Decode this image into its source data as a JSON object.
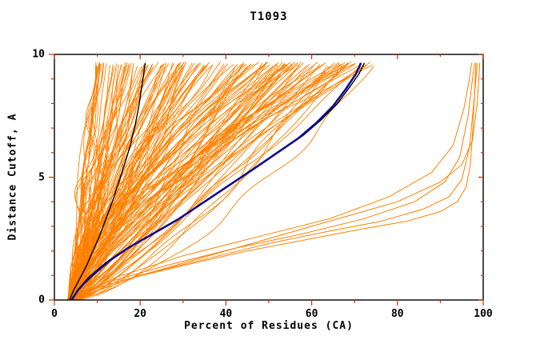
{
  "chart_data": {
    "type": "line",
    "title": "T1093",
    "xlabel": "Percent of Residues (CA)",
    "ylabel": "Distance Cutoff, A",
    "xlim": [
      0,
      100
    ],
    "ylim": [
      0,
      10
    ],
    "xticks": [
      0,
      20,
      40,
      60,
      80,
      100
    ],
    "yticks": [
      0,
      5,
      10
    ],
    "x_minor_step": 10,
    "y_minor_step": 1,
    "grid": false,
    "legend": "none",
    "colors": {
      "models": "#ff8000",
      "reference": "#000000",
      "highlight": "#140a8c",
      "frame": "#000000",
      "ticks": "#cc3300",
      "background": "#ffffff"
    },
    "model_bundle": {
      "description": "bundle of server model GDT-style curves",
      "count": 150,
      "seed": 42,
      "x_start_range": [
        3,
        6
      ],
      "x_top_range": [
        8,
        75
      ],
      "shape_exp_range": [
        0.65,
        1.75
      ],
      "y_top": 9.65,
      "line_width": 0.9
    },
    "outlier_curves": [
      {
        "name": "outlier-model-1",
        "points": [
          [
            3.5,
            0
          ],
          [
            8,
            0.4
          ],
          [
            18,
            0.9
          ],
          [
            30,
            1.4
          ],
          [
            45,
            2.0
          ],
          [
            60,
            2.5
          ],
          [
            72,
            2.9
          ],
          [
            82,
            3.2
          ],
          [
            90,
            3.6
          ],
          [
            94,
            4.0
          ],
          [
            96,
            4.6
          ],
          [
            97,
            5.5
          ],
          [
            97.6,
            7.0
          ],
          [
            98,
            8.5
          ],
          [
            98.3,
            9.65
          ]
        ]
      },
      {
        "name": "outlier-model-2",
        "points": [
          [
            4,
            0
          ],
          [
            10,
            0.5
          ],
          [
            22,
            1.1
          ],
          [
            36,
            1.7
          ],
          [
            50,
            2.3
          ],
          [
            64,
            2.8
          ],
          [
            76,
            3.2
          ],
          [
            86,
            3.7
          ],
          [
            92,
            4.2
          ],
          [
            95,
            4.9
          ],
          [
            96.8,
            6.2
          ],
          [
            97.8,
            8.0
          ],
          [
            98.4,
            9.2
          ],
          [
            98.6,
            9.65
          ]
        ]
      },
      {
        "name": "outlier-model-3",
        "points": [
          [
            4.5,
            0
          ],
          [
            12,
            0.7
          ],
          [
            26,
            1.4
          ],
          [
            42,
            2.1
          ],
          [
            58,
            2.7
          ],
          [
            72,
            3.3
          ],
          [
            84,
            4.0
          ],
          [
            91,
            4.8
          ],
          [
            94.5,
            5.8
          ],
          [
            96.5,
            7.5
          ],
          [
            97.5,
            9.0
          ],
          [
            98,
            9.65
          ]
        ]
      },
      {
        "name": "outlier-model-4",
        "points": [
          [
            5,
            0
          ],
          [
            14,
            0.9
          ],
          [
            30,
            1.8
          ],
          [
            48,
            2.6
          ],
          [
            64,
            3.3
          ],
          [
            78,
            4.2
          ],
          [
            88,
            5.2
          ],
          [
            93,
            6.3
          ],
          [
            95.5,
            7.8
          ],
          [
            96.8,
            9.0
          ],
          [
            97.3,
            9.65
          ]
        ]
      },
      {
        "name": "outlier-model-5",
        "points": [
          [
            4,
            0
          ],
          [
            20,
            1.0
          ],
          [
            40,
            2.0
          ],
          [
            60,
            3.0
          ],
          [
            80,
            4.0
          ],
          [
            90,
            4.8
          ],
          [
            95,
            5.5
          ],
          [
            97.5,
            6.5
          ],
          [
            98.6,
            8.0
          ],
          [
            99.2,
            9.65
          ]
        ]
      }
    ],
    "named_curves": [
      {
        "name": "reference-black-left",
        "color": "#000000",
        "width": 1.4,
        "points": [
          [
            3.5,
            0
          ],
          [
            4.5,
            0.4
          ],
          [
            6,
            0.9
          ],
          [
            7.5,
            1.4
          ],
          [
            9,
            2.0
          ],
          [
            10.5,
            2.6
          ],
          [
            12,
            3.3
          ],
          [
            13.5,
            4.0
          ],
          [
            15,
            4.8
          ],
          [
            16.5,
            5.6
          ],
          [
            17.7,
            6.3
          ],
          [
            18.8,
            7.1
          ],
          [
            19.7,
            7.9
          ],
          [
            20.3,
            8.6
          ],
          [
            20.8,
            9.2
          ],
          [
            21.2,
            9.65
          ]
        ]
      },
      {
        "name": "reference-black-right",
        "color": "#000000",
        "width": 1.4,
        "points": [
          [
            4,
            0
          ],
          [
            6,
            0.5
          ],
          [
            9,
            1.0
          ],
          [
            13,
            1.6
          ],
          [
            18,
            2.2
          ],
          [
            24,
            2.8
          ],
          [
            30,
            3.4
          ],
          [
            36,
            4.1
          ],
          [
            42,
            4.8
          ],
          [
            48,
            5.5
          ],
          [
            53,
            6.1
          ],
          [
            58,
            6.7
          ],
          [
            62,
            7.3
          ],
          [
            66,
            8.0
          ],
          [
            69,
            8.7
          ],
          [
            71,
            9.2
          ],
          [
            72.3,
            9.65
          ]
        ]
      },
      {
        "name": "best-model-blue",
        "color": "#140a8c",
        "width": 2.6,
        "points": [
          [
            4,
            0
          ],
          [
            5.5,
            0.4
          ],
          [
            8,
            0.9
          ],
          [
            12,
            1.5
          ],
          [
            17,
            2.1
          ],
          [
            23,
            2.7
          ],
          [
            29,
            3.3
          ],
          [
            35,
            4.0
          ],
          [
            41,
            4.7
          ],
          [
            47,
            5.4
          ],
          [
            52,
            6.0
          ],
          [
            57,
            6.6
          ],
          [
            61,
            7.2
          ],
          [
            65,
            7.9
          ],
          [
            68,
            8.6
          ],
          [
            70.3,
            9.2
          ],
          [
            71.5,
            9.65
          ]
        ]
      }
    ]
  }
}
